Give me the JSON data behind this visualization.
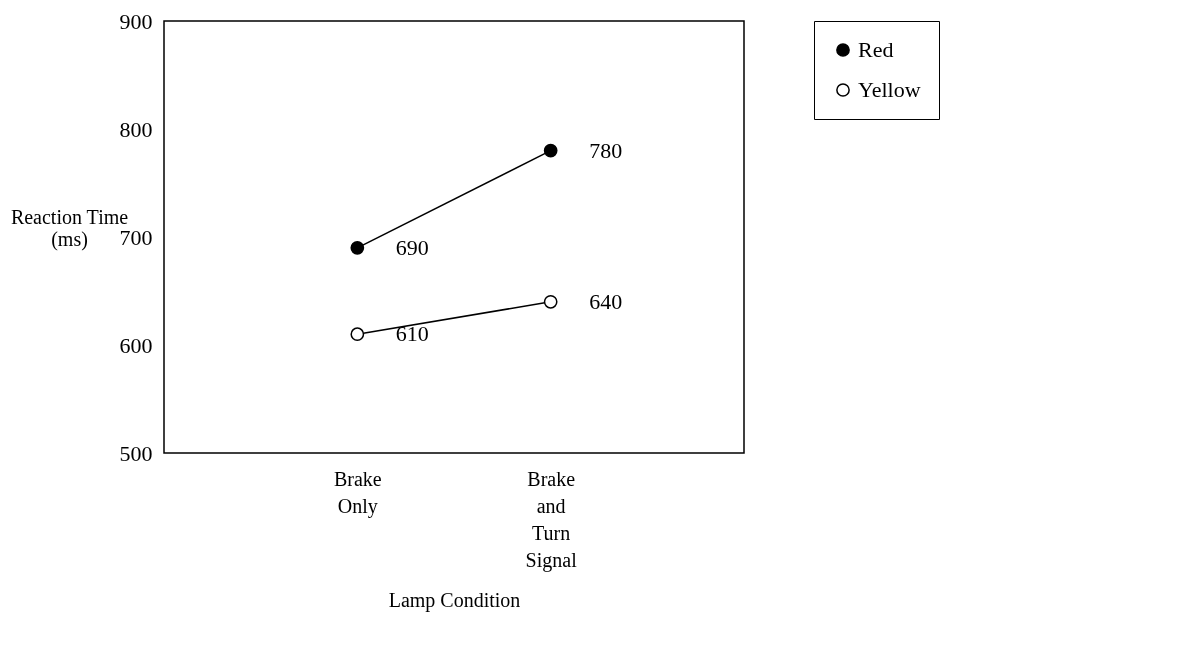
{
  "chart_data": {
    "type": "line",
    "xlabel": "Lamp Condition",
    "ylabel": "Reaction Time (ms)",
    "categories": [
      "Brake Only",
      "Brake and Turn Signal"
    ],
    "series": [
      {
        "name": "Red",
        "color": "#000000",
        "values": [
          690,
          780
        ]
      },
      {
        "name": "Yellow",
        "color": "#ffffff",
        "values": [
          610,
          640
        ]
      }
    ],
    "ylim": [
      500,
      900
    ],
    "yticks": [
      500,
      600,
      700,
      800,
      900
    ],
    "grid": false,
    "legend": "right",
    "marker": "circle",
    "data_labels": true
  }
}
